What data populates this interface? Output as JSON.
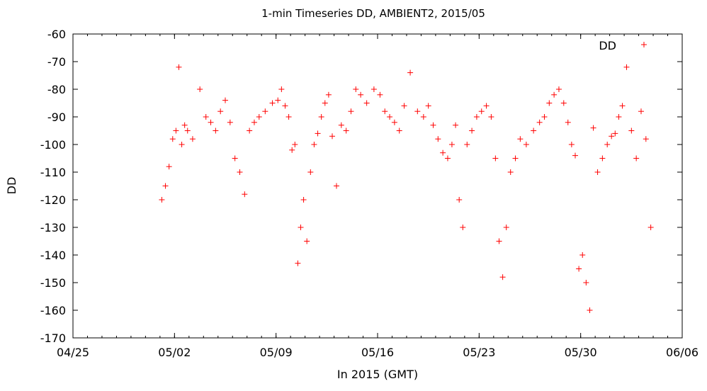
{
  "chart_data": {
    "type": "scatter",
    "title": "1-min Timeseries DD, AMBIENT2, 2015/05",
    "xlabel": "In 2015 (GMT)",
    "ylabel": "DD",
    "x_ticks": [
      "04/25",
      "05/02",
      "05/09",
      "05/16",
      "05/23",
      "05/30",
      "06/06"
    ],
    "xlim": [
      "2015-04-25",
      "2015-06-06"
    ],
    "ylim": [
      -170,
      -60
    ],
    "y_ticks": [
      -60,
      -70,
      -80,
      -90,
      -100,
      -110,
      -120,
      -130,
      -140,
      -150,
      -160,
      -170
    ],
    "grid": false,
    "legend_position": "top-right",
    "marker": "plus",
    "series": [
      {
        "name": "DD",
        "color": "#ff0000",
        "x": [
          "2015-05-01",
          "2015-05-01",
          "2015-05-01",
          "2015-05-01",
          "2015-05-02",
          "2015-05-02",
          "2015-05-02",
          "2015-05-02",
          "2015-05-02",
          "2015-05-03",
          "2015-05-03",
          "2015-05-04",
          "2015-05-04",
          "2015-05-04",
          "2015-05-05",
          "2015-05-05",
          "2015-05-05",
          "2015-05-06",
          "2015-05-06",
          "2015-05-06",
          "2015-05-07",
          "2015-05-07",
          "2015-05-07",
          "2015-05-08",
          "2015-05-08",
          "2015-05-09",
          "2015-05-09",
          "2015-05-09",
          "2015-05-09",
          "2015-05-10",
          "2015-05-10",
          "2015-05-10",
          "2015-05-10",
          "2015-05-10",
          "2015-05-11",
          "2015-05-11",
          "2015-05-11",
          "2015-05-11",
          "2015-05-12",
          "2015-05-12",
          "2015-05-12",
          "2015-05-12",
          "2015-05-13",
          "2015-05-13",
          "2015-05-13",
          "2015-05-14",
          "2015-05-14",
          "2015-05-14",
          "2015-05-15",
          "2015-05-15",
          "2015-05-16",
          "2015-05-16",
          "2015-05-16",
          "2015-05-17",
          "2015-05-17",
          "2015-05-17",
          "2015-05-18",
          "2015-05-18",
          "2015-05-19",
          "2015-05-19",
          "2015-05-19",
          "2015-05-20",
          "2015-05-20",
          "2015-05-20",
          "2015-05-21",
          "2015-05-21",
          "2015-05-21",
          "2015-05-21",
          "2015-05-22",
          "2015-05-22",
          "2015-05-22",
          "2015-05-23",
          "2015-05-23",
          "2015-05-23",
          "2015-05-24",
          "2015-05-24",
          "2015-05-24",
          "2015-05-24",
          "2015-05-25",
          "2015-05-25",
          "2015-05-25",
          "2015-05-26",
          "2015-05-26",
          "2015-05-27",
          "2015-05-27",
          "2015-05-27",
          "2015-05-28",
          "2015-05-28",
          "2015-05-28",
          "2015-05-29",
          "2015-05-29",
          "2015-05-29",
          "2015-05-29",
          "2015-05-30",
          "2015-05-30",
          "2015-05-30",
          "2015-05-30",
          "2015-05-31",
          "2015-05-31",
          "2015-05-31",
          "2015-06-01",
          "2015-06-01",
          "2015-06-01",
          "2015-06-01",
          "2015-06-02",
          "2015-06-02",
          "2015-06-02",
          "2015-06-03",
          "2015-06-03",
          "2015-06-03"
        ],
        "y": [
          -120,
          -115,
          -108,
          -98,
          -95,
          -72,
          -100,
          -93,
          -95,
          -98,
          -80,
          -90,
          -92,
          -95,
          -88,
          -84,
          -92,
          -105,
          -110,
          -118,
          -95,
          -92,
          -90,
          -88,
          -85,
          -84,
          -80,
          -86,
          -90,
          -102,
          -100,
          -143,
          -130,
          -120,
          -135,
          -110,
          -100,
          -96,
          -90,
          -85,
          -82,
          -97,
          -115,
          -93,
          -95,
          -88,
          -80,
          -82,
          -85,
          -80,
          -82,
          -88,
          -90,
          -92,
          -95,
          -86,
          -74,
          -88,
          -90,
          -86,
          -93,
          -98,
          -103,
          -105,
          -100,
          -93,
          -120,
          -130,
          -100,
          -95,
          -90,
          -88,
          -86,
          -90,
          -105,
          -135,
          -148,
          -130,
          -110,
          -105,
          -98,
          -100,
          -95,
          -92,
          -90,
          -85,
          -82,
          -80,
          -85,
          -92,
          -100,
          -104,
          -145,
          -140,
          -150,
          -160,
          -94,
          -110,
          -105,
          -100,
          -97,
          -96,
          -90,
          -86,
          -72,
          -95,
          -105,
          -88,
          -98,
          -130
        ]
      }
    ]
  }
}
